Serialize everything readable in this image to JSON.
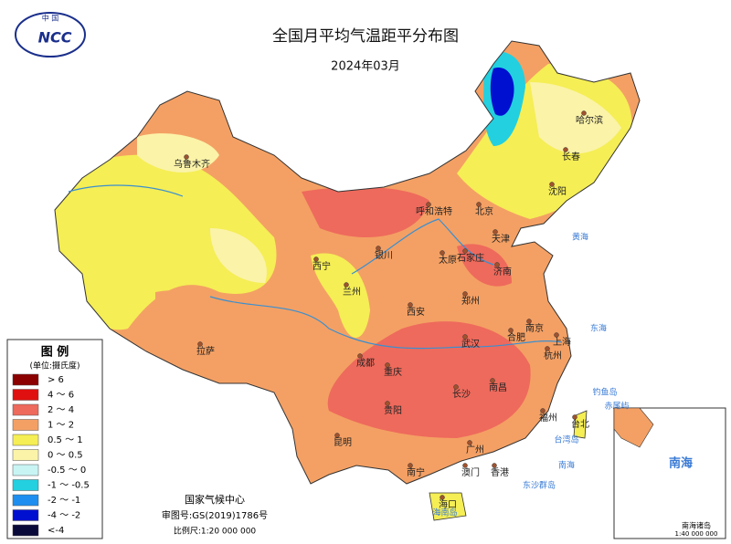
{
  "header": {
    "title": "全国月平均气温距平分布图",
    "subtitle": "2024年03月",
    "logo_top": "中 国",
    "logo_main": "NCC"
  },
  "legend": {
    "title": "图  例",
    "unit": "(单位:摄氏度)",
    "items": [
      {
        "label": "> 6",
        "color": "#8b0000"
      },
      {
        "label": "4 ～ 6",
        "color": "#e01010"
      },
      {
        "label": "2 ～ 4",
        "color": "#ee6a5c"
      },
      {
        "label": "1 ～ 2",
        "color": "#f4a064"
      },
      {
        "label": "0.5 ～ 1",
        "color": "#f5ee55"
      },
      {
        "label": "0 ～ 0.5",
        "color": "#fbf3a8"
      },
      {
        "label": "-0.5 ～ 0",
        "color": "#c8f4f4"
      },
      {
        "label": "-1 ～ -0.5",
        "color": "#22d0e0"
      },
      {
        "label": "-2 ～ -1",
        "color": "#1e8ff0"
      },
      {
        "label": "-4 ～ -2",
        "color": "#0010d0"
      },
      {
        "label": "<-4",
        "color": "#0a0a3a"
      }
    ]
  },
  "cities": [
    "乌鲁木齐",
    "拉萨",
    "西宁",
    "兰州",
    "银川",
    "呼和浩特",
    "北京",
    "天津",
    "石家庄",
    "太原",
    "济南",
    "郑州",
    "西安",
    "成都",
    "重庆",
    "武汉",
    "合肥",
    "南京",
    "上海",
    "杭州",
    "长沙",
    "南昌",
    "福州",
    "台北",
    "贵阳",
    "昆明",
    "南宁",
    "广州",
    "澳门",
    "香港",
    "海口",
    "哈尔滨",
    "长春",
    "沈阳"
  ],
  "seas": [
    "黄海",
    "东海",
    "南海",
    "钓鱼岛",
    "赤尾屿",
    "台湾岛",
    "东沙群岛",
    "海南岛"
  ],
  "inset": {
    "title": "南海",
    "caption": "南海诸岛",
    "scale": "1:40 000 000"
  },
  "footer": {
    "org": "国家气候中心",
    "approval": "审图号:GS(2019)1786号",
    "scale": "比例尺:1:20 000 000"
  }
}
